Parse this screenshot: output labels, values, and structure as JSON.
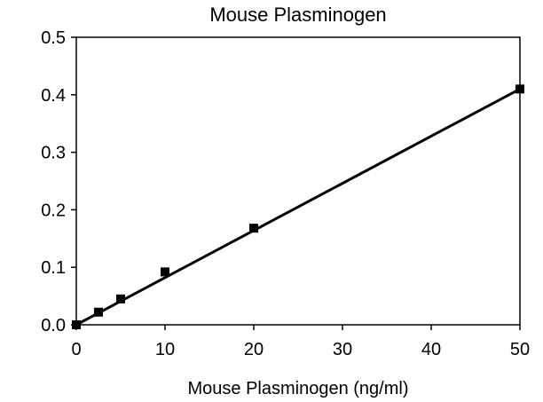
{
  "chart_data": {
    "type": "scatter",
    "title": "Mouse Plasminogen",
    "xlabel": "Mouse Plasminogen (ng/ml)",
    "ylabel": "",
    "xlim": [
      0,
      50
    ],
    "ylim": [
      0.0,
      0.5
    ],
    "xticks": [
      "0",
      "10",
      "20",
      "30",
      "40",
      "50"
    ],
    "yticks": [
      "0.0",
      "0.1",
      "0.2",
      "0.3",
      "0.4",
      "0.5"
    ],
    "grid": false,
    "legend": "none",
    "series": [
      {
        "x": [
          0,
          2.5,
          5,
          10,
          20,
          50
        ],
        "y": [
          0.0,
          0.022,
          0.045,
          0.092,
          0.168,
          0.41
        ],
        "marker": "square"
      }
    ],
    "fit_line": {
      "x": [
        0,
        50
      ],
      "y": [
        0.0,
        0.41
      ]
    },
    "colors": {
      "marker": "#000000",
      "line": "#000000",
      "axes": "#000000"
    }
  }
}
